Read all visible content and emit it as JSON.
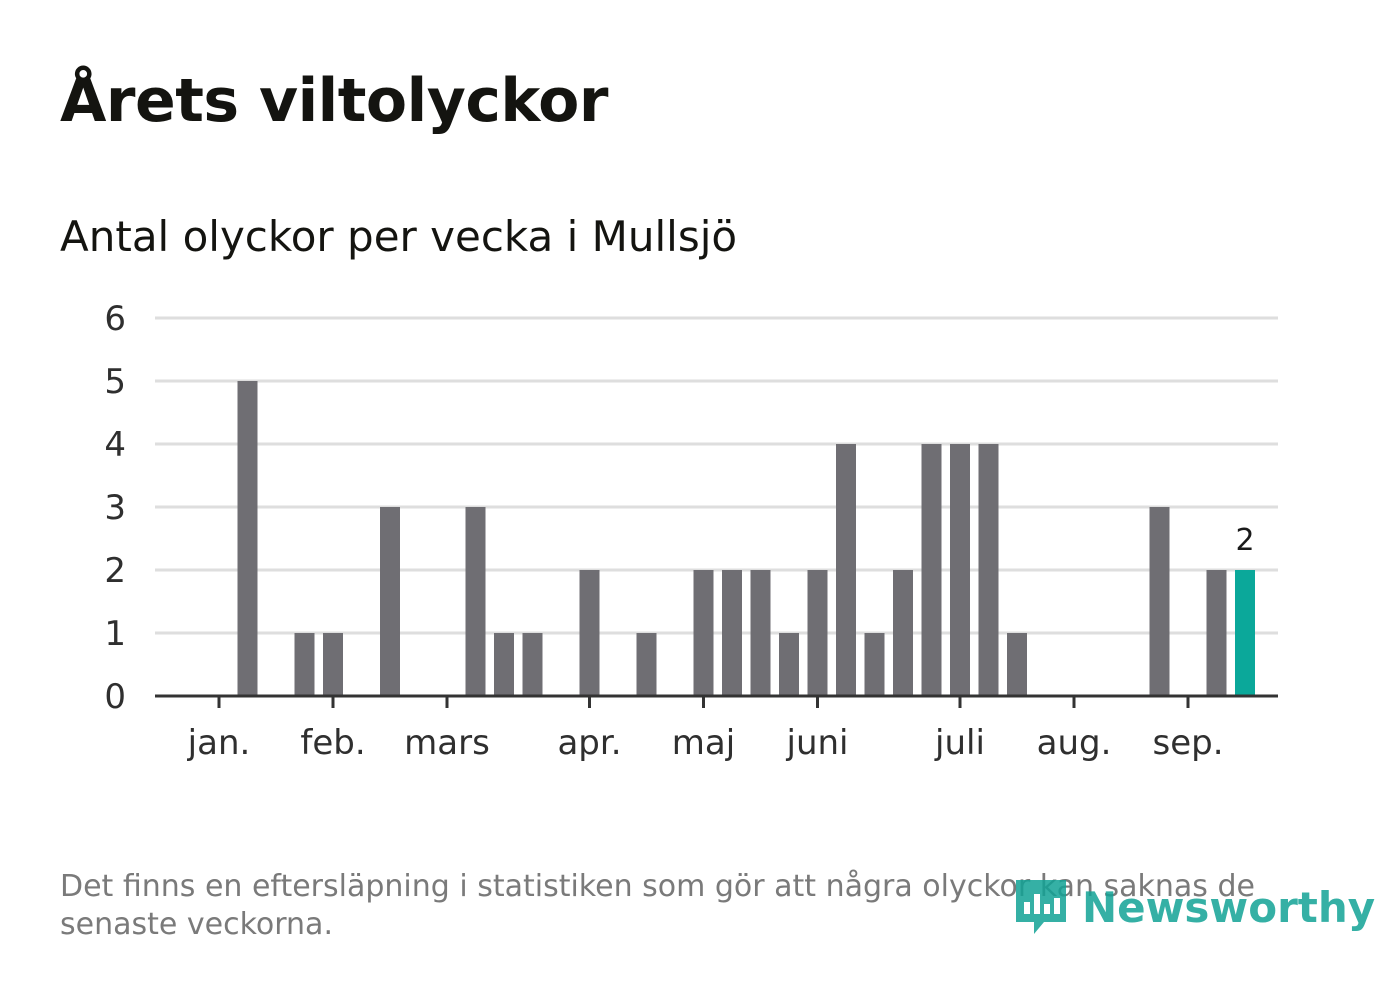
{
  "header": {
    "title": "Årets viltolyckor",
    "subtitle": "Antal olyckor per vecka i Mullsjö"
  },
  "footnote": "Det finns en eftersläpning i statistiken som gör att några olyckor kan saknas de senaste veckorna.",
  "brand": {
    "name": "Newsworthy",
    "icon": "bar-chart-speech-bubble-icon",
    "color": "#12a396"
  },
  "chart_data": {
    "type": "bar",
    "title": "Årets viltolyckor",
    "subtitle": "Antal olyckor per vecka i Mullsjö",
    "xlabel": "",
    "ylabel": "",
    "ylim": [
      0,
      6
    ],
    "yticks": [
      0,
      1,
      2,
      3,
      4,
      5,
      6
    ],
    "grid": true,
    "x_week_range": [
      1,
      37
    ],
    "month_labels": [
      {
        "label": "jan.",
        "week": 1
      },
      {
        "label": "feb.",
        "week": 5
      },
      {
        "label": "mars",
        "week": 9
      },
      {
        "label": "apr.",
        "week": 14
      },
      {
        "label": "maj",
        "week": 18
      },
      {
        "label": "juni",
        "week": 22
      },
      {
        "label": "juli",
        "week": 27
      },
      {
        "label": "aug.",
        "week": 31
      },
      {
        "label": "sep.",
        "week": 35
      }
    ],
    "weeks": [
      1,
      2,
      3,
      4,
      5,
      6,
      7,
      8,
      9,
      10,
      11,
      12,
      13,
      14,
      15,
      16,
      17,
      18,
      19,
      20,
      21,
      22,
      23,
      24,
      25,
      26,
      27,
      28,
      29,
      30,
      31,
      32,
      33,
      34,
      35,
      36,
      37
    ],
    "values": [
      0,
      5,
      0,
      1,
      1,
      0,
      3,
      0,
      0,
      3,
      1,
      1,
      0,
      2,
      0,
      1,
      0,
      2,
      2,
      2,
      1,
      2,
      4,
      1,
      2,
      4,
      4,
      4,
      1,
      0,
      0,
      0,
      0,
      3,
      0,
      2,
      2
    ],
    "bar_color": "#6f6e73",
    "highlight_color": "#0ba89a",
    "highlight_index": 36,
    "highlight_label": "2"
  }
}
